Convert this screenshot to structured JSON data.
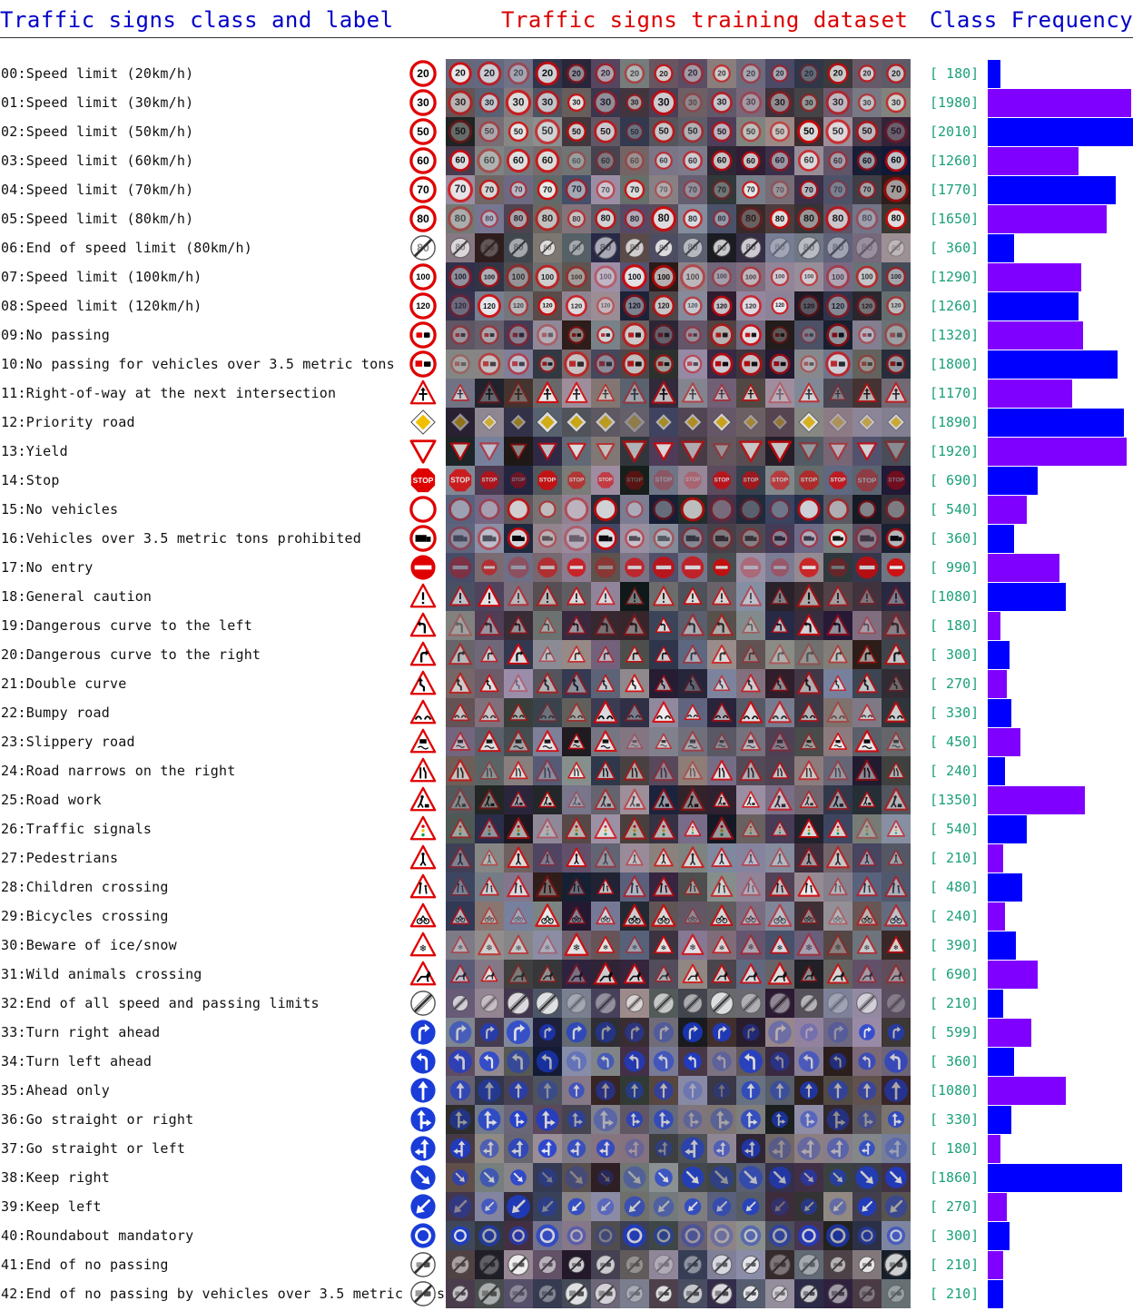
{
  "headers": {
    "labels": "Traffic signs class and label",
    "training": "Traffic signs training dataset",
    "frequency": "Class Frequency"
  },
  "colors": {
    "header_blue": "#0000c8",
    "header_red": "#dc0000",
    "count_text": "#1aa07a",
    "bar_blue": "#0000ff",
    "bar_purple": "#7f00ff",
    "sign_red": "#e00000",
    "sign_blue": "#1a3cd8"
  },
  "chart_data": {
    "type": "bar",
    "orientation": "horizontal",
    "title": "Class Frequency",
    "xlim": [
      0,
      2010
    ],
    "categories": [
      "00:Speed limit (20km/h)",
      "01:Speed limit (30km/h)",
      "02:Speed limit (50km/h)",
      "03:Speed limit (60km/h)",
      "04:Speed limit (70km/h)",
      "05:Speed limit (80km/h)",
      "06:End of speed limit (80km/h)",
      "07:Speed limit (100km/h)",
      "08:Speed limit (120km/h)",
      "09:No passing",
      "10:No passing for vehicles over 3.5 metric tons",
      "11:Right-of-way at the next intersection",
      "12:Priority road",
      "13:Yield",
      "14:Stop",
      "15:No vehicles",
      "16:Vehicles over 3.5 metric tons prohibited",
      "17:No entry",
      "18:General caution",
      "19:Dangerous curve to the left",
      "20:Dangerous curve to the right",
      "21:Double curve",
      "22:Bumpy road",
      "23:Slippery road",
      "24:Road narrows on the right",
      "25:Road work",
      "26:Traffic signals",
      "27:Pedestrians",
      "28:Children crossing",
      "29:Bicycles crossing",
      "30:Beware of ice/snow",
      "31:Wild animals crossing",
      "32:End of all speed and passing limits",
      "33:Turn right ahead",
      "34:Turn left ahead",
      "35:Ahead only",
      "36:Go straight or right",
      "37:Go straight or left",
      "38:Keep right",
      "39:Keep left",
      "40:Roundabout mandatory",
      "41:End of no passing",
      "42:End of no passing by vehicles over 3.5 metric tons"
    ],
    "counts": [
      "[ 180]",
      "[1980]",
      "[2010]",
      "[1260]",
      "[1770]",
      "[1650]",
      "[ 360]",
      "[1290]",
      "[1260]",
      "[1320]",
      "[1800]",
      "[1170]",
      "[1890]",
      "[1920]",
      "[ 690]",
      "[ 540]",
      "[ 360]",
      "[ 990]",
      "[1080]",
      "[ 180]",
      "[ 300]",
      "[ 270]",
      "[ 330]",
      "[ 450]",
      "[ 240]",
      "[1350]",
      "[ 540]",
      "[ 210]",
      "[ 480]",
      "[ 240]",
      "[ 390]",
      "[ 690]",
      "[ 210]",
      "[ 599]",
      "[ 360]",
      "[1080]",
      "[ 330]",
      "[ 180]",
      "[1860]",
      "[ 270]",
      "[ 300]",
      "[ 210]",
      "[ 210]"
    ],
    "values": [
      180,
      1980,
      2010,
      1260,
      1770,
      1650,
      360,
      1290,
      1260,
      1320,
      1800,
      1170,
      1890,
      1920,
      690,
      540,
      360,
      990,
      1080,
      180,
      300,
      270,
      330,
      450,
      240,
      1350,
      540,
      210,
      480,
      240,
      390,
      690,
      210,
      599,
      360,
      1080,
      330,
      180,
      1860,
      270,
      300,
      210,
      210
    ],
    "icons": [
      "speed-limit-20-icon",
      "speed-limit-30-icon",
      "speed-limit-50-icon",
      "speed-limit-60-icon",
      "speed-limit-70-icon",
      "speed-limit-80-icon",
      "end-speed-limit-80-icon",
      "speed-limit-100-icon",
      "speed-limit-120-icon",
      "no-passing-icon",
      "no-passing-trucks-icon",
      "right-of-way-icon",
      "priority-road-icon",
      "yield-icon",
      "stop-icon",
      "no-vehicles-icon",
      "trucks-prohibited-icon",
      "no-entry-icon",
      "general-caution-icon",
      "curve-left-icon",
      "curve-right-icon",
      "double-curve-icon",
      "bumpy-road-icon",
      "slippery-road-icon",
      "road-narrows-icon",
      "road-work-icon",
      "traffic-signals-icon",
      "pedestrians-icon",
      "children-crossing-icon",
      "bicycles-crossing-icon",
      "ice-snow-icon",
      "wild-animals-icon",
      "end-all-limits-icon",
      "turn-right-icon",
      "turn-left-icon",
      "ahead-only-icon",
      "straight-or-right-icon",
      "straight-or-left-icon",
      "keep-right-icon",
      "keep-left-icon",
      "roundabout-icon",
      "end-no-passing-icon",
      "end-no-passing-trucks-icon"
    ]
  }
}
